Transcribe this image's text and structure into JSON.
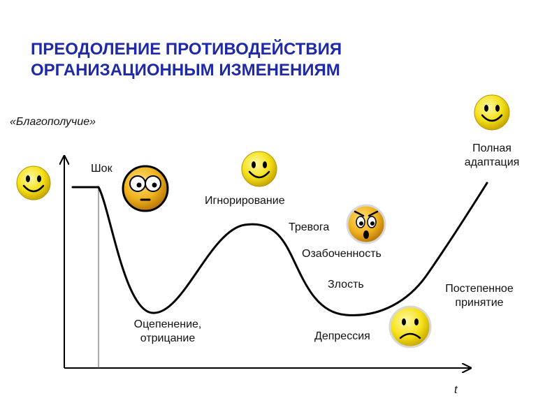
{
  "title": {
    "line1": "ПРЕОДОЛЕНИЕ ПРОТИВОДЕЙСТВИЯ",
    "line2": "ОРГАНИЗАЦИОННЫМ ИЗМЕНЕНИЯМ"
  },
  "axes": {
    "y_label": "«Благополучие»",
    "x_label": "t"
  },
  "stages": {
    "shock": "Шок",
    "numbness_line1": "Оцепенение,",
    "numbness_line2": "отрицание",
    "ignoring": "Игнорирование",
    "anxiety": "Тревога",
    "worry": "Озабоченность",
    "anger": "Злость",
    "depression": "Депрессия",
    "acceptance_line1": "Постепенное",
    "acceptance_line2": "принятие",
    "adaptation_line1": "Полная",
    "adaptation_line2": "адаптация"
  },
  "faces": [
    {
      "name": "happy-face-icon",
      "mood": "happy"
    },
    {
      "name": "shocked-face-icon",
      "mood": "shocked"
    },
    {
      "name": "happy-face-icon",
      "mood": "happy"
    },
    {
      "name": "worried-face-icon",
      "mood": "worried"
    },
    {
      "name": "sad-face-icon",
      "mood": "sad"
    },
    {
      "name": "happy-face-icon",
      "mood": "happy"
    }
  ],
  "colors": {
    "title": "#1f2aa6",
    "face_fill": "#f5e21a",
    "shock_face_fill": "#f0b21e",
    "curve": "#000000"
  }
}
